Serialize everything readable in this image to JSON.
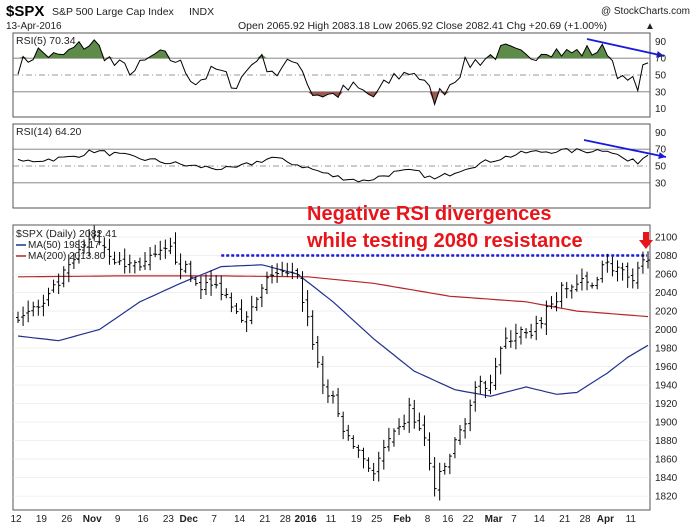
{
  "header": {
    "symbol": "$SPX",
    "name": "S&P 500 Large Cap Index",
    "exchange": "INDX",
    "watermark": "@ StockCharts.com",
    "date": "13-Apr-2016",
    "quote": "Open 2065.92  High 2083.18  Low 2065.92  Close 2082.41  Chg +20.69 (+1.00%)",
    "quote_arrow": "▲"
  },
  "rsi5": {
    "label": "RSI(5) 70.34",
    "ticks": [
      {
        "v": 90,
        "label": "90"
      },
      {
        "v": 70,
        "label": "70"
      },
      {
        "v": 50,
        "label": "50"
      },
      {
        "v": 30,
        "label": "30"
      },
      {
        "v": 10,
        "label": "10"
      }
    ]
  },
  "rsi14": {
    "label": "RSI(14) 64.20",
    "ticks": [
      {
        "v": 90,
        "label": "90"
      },
      {
        "v": 70,
        "label": "70"
      },
      {
        "v": 50,
        "label": "50"
      },
      {
        "v": 30,
        "label": "30"
      }
    ]
  },
  "price": {
    "label": "$SPX (Daily) 2082.41",
    "ma50_label": "MA(50) 1983.17",
    "ma200_label": "MA(200) 2013.80",
    "ticks": [
      {
        "v": 2100,
        "label": "2100"
      },
      {
        "v": 2080,
        "label": "2080"
      },
      {
        "v": 2060,
        "label": "2060"
      },
      {
        "v": 2040,
        "label": "2040"
      },
      {
        "v": 2020,
        "label": "2020"
      },
      {
        "v": 2000,
        "label": "2000"
      },
      {
        "v": 1980,
        "label": "1980"
      },
      {
        "v": 1960,
        "label": "1960"
      },
      {
        "v": 1940,
        "label": "1940"
      },
      {
        "v": 1920,
        "label": "1920"
      },
      {
        "v": 1900,
        "label": "1900"
      },
      {
        "v": 1880,
        "label": "1880"
      },
      {
        "v": 1860,
        "label": "1860"
      },
      {
        "v": 1840,
        "label": "1840"
      },
      {
        "v": 1820,
        "label": "1820"
      }
    ],
    "annotation": [
      "Negative RSI divergences",
      "while testing 2080 resistance"
    ],
    "resistance_level": 2080
  },
  "x_labels": [
    {
      "d": 0,
      "text": "12",
      "bold": false
    },
    {
      "d": 5,
      "text": "19",
      "bold": false
    },
    {
      "d": 10,
      "text": "26",
      "bold": false
    },
    {
      "d": 15,
      "text": "Nov",
      "bold": true
    },
    {
      "d": 20,
      "text": "9",
      "bold": false
    },
    {
      "d": 25,
      "text": "16",
      "bold": false
    },
    {
      "d": 30,
      "text": "23",
      "bold": false
    },
    {
      "d": 34,
      "text": "Dec",
      "bold": true
    },
    {
      "d": 39,
      "text": "7",
      "bold": false
    },
    {
      "d": 44,
      "text": "14",
      "bold": false
    },
    {
      "d": 49,
      "text": "21",
      "bold": false
    },
    {
      "d": 53,
      "text": "28",
      "bold": false
    },
    {
      "d": 57,
      "text": "2016",
      "bold": true
    },
    {
      "d": 62,
      "text": "11",
      "bold": false
    },
    {
      "d": 67,
      "text": "19",
      "bold": false
    },
    {
      "d": 71,
      "text": "25",
      "bold": false
    },
    {
      "d": 76,
      "text": "Feb",
      "bold": true
    },
    {
      "d": 81,
      "text": "8",
      "bold": false
    },
    {
      "d": 85,
      "text": "16",
      "bold": false
    },
    {
      "d": 89,
      "text": "22",
      "bold": false
    },
    {
      "d": 94,
      "text": "Mar",
      "bold": true
    },
    {
      "d": 98,
      "text": "7",
      "bold": false
    },
    {
      "d": 103,
      "text": "14",
      "bold": false
    },
    {
      "d": 108,
      "text": "21",
      "bold": false
    },
    {
      "d": 112,
      "text": "28",
      "bold": false
    },
    {
      "d": 116,
      "text": "Apr",
      "bold": true
    },
    {
      "d": 121,
      "text": "11",
      "bold": false
    }
  ],
  "chart_data": {
    "type": "line",
    "x": "trading-day index 0–124 (Oct 12, 2015 – Apr 13, 2016)",
    "price_ohlc_close_key": [
      [
        0,
        2017
      ],
      [
        5,
        2026
      ],
      [
        10,
        2066
      ],
      [
        15,
        2104
      ],
      [
        20,
        2070
      ],
      [
        25,
        2072
      ],
      [
        30,
        2085
      ],
      [
        35,
        2050
      ],
      [
        40,
        2044
      ],
      [
        45,
        2010
      ],
      [
        50,
        2062
      ],
      [
        55,
        2055
      ],
      [
        57,
        2012
      ],
      [
        60,
        1940
      ],
      [
        62,
        1922
      ],
      [
        65,
        1880
      ],
      [
        67,
        1870
      ],
      [
        70,
        1845
      ],
      [
        72,
        1870
      ],
      [
        75,
        1890
      ],
      [
        77,
        1914
      ],
      [
        80,
        1880
      ],
      [
        82,
        1829
      ],
      [
        84,
        1851
      ],
      [
        87,
        1890
      ],
      [
        90,
        1932
      ],
      [
        93,
        1948
      ],
      [
        95,
        1978
      ],
      [
        98,
        1999
      ],
      [
        101,
        1990
      ],
      [
        104,
        2022
      ],
      [
        107,
        2041
      ],
      [
        110,
        2050
      ],
      [
        113,
        2048
      ],
      [
        115,
        2072
      ],
      [
        118,
        2066
      ],
      [
        121,
        2047
      ],
      [
        122,
        2061
      ],
      [
        124,
        2082
      ]
    ],
    "ma50_key": [
      [
        0,
        1993
      ],
      [
        8,
        1988
      ],
      [
        16,
        2000
      ],
      [
        24,
        2030
      ],
      [
        32,
        2050
      ],
      [
        40,
        2068
      ],
      [
        48,
        2070
      ],
      [
        55,
        2060
      ],
      [
        62,
        2030
      ],
      [
        70,
        1990
      ],
      [
        78,
        1955
      ],
      [
        86,
        1935
      ],
      [
        93,
        1928
      ],
      [
        100,
        1938
      ],
      [
        106,
        1930
      ],
      [
        110,
        1932
      ],
      [
        116,
        1953
      ],
      [
        120,
        1970
      ],
      [
        124,
        1983
      ]
    ],
    "ma200_key": [
      [
        0,
        2057
      ],
      [
        20,
        2058
      ],
      [
        40,
        2058
      ],
      [
        57,
        2057
      ],
      [
        70,
        2050
      ],
      [
        85,
        2036
      ],
      [
        100,
        2030
      ],
      [
        110,
        2020
      ],
      [
        124,
        2014
      ]
    ],
    "rsi5_key": [
      [
        0,
        60
      ],
      [
        4,
        78
      ],
      [
        8,
        70
      ],
      [
        12,
        84
      ],
      [
        15,
        88
      ],
      [
        19,
        62
      ],
      [
        23,
        55
      ],
      [
        27,
        74
      ],
      [
        31,
        68
      ],
      [
        35,
        42
      ],
      [
        39,
        56
      ],
      [
        43,
        38
      ],
      [
        47,
        72
      ],
      [
        51,
        52
      ],
      [
        55,
        70
      ],
      [
        58,
        28
      ],
      [
        62,
        26
      ],
      [
        66,
        35
      ],
      [
        70,
        24
      ],
      [
        74,
        48
      ],
      [
        78,
        55
      ],
      [
        82,
        22
      ],
      [
        85,
        40
      ],
      [
        88,
        62
      ],
      [
        92,
        70
      ],
      [
        96,
        80
      ],
      [
        100,
        70
      ],
      [
        104,
        82
      ],
      [
        108,
        76
      ],
      [
        112,
        78
      ],
      [
        116,
        80
      ],
      [
        119,
        42
      ],
      [
        122,
        40
      ],
      [
        124,
        70
      ]
    ],
    "rsi14_key": [
      [
        0,
        55
      ],
      [
        10,
        60
      ],
      [
        15,
        68
      ],
      [
        25,
        58
      ],
      [
        34,
        50
      ],
      [
        42,
        46
      ],
      [
        50,
        60
      ],
      [
        56,
        50
      ],
      [
        62,
        38
      ],
      [
        68,
        32
      ],
      [
        74,
        42
      ],
      [
        78,
        44
      ],
      [
        82,
        34
      ],
      [
        88,
        48
      ],
      [
        94,
        58
      ],
      [
        100,
        66
      ],
      [
        106,
        68
      ],
      [
        112,
        68
      ],
      [
        116,
        70
      ],
      [
        120,
        56
      ],
      [
        122,
        55
      ],
      [
        124,
        64
      ]
    ],
    "rsi_range": [
      0,
      100
    ],
    "price_range": [
      1805,
      2113
    ],
    "colors": {
      "price": "#000000",
      "ma50": "#22318c",
      "ma200": "#b5262b",
      "rsi": "#000000",
      "rsi_overbought_fill": "#5e8a4a",
      "rsi_oversold_fill": "#9a5a4d",
      "resistance": "#1a1adb",
      "divergence_arrow": "#1a1adb",
      "annotation": "#e8141a"
    }
  }
}
